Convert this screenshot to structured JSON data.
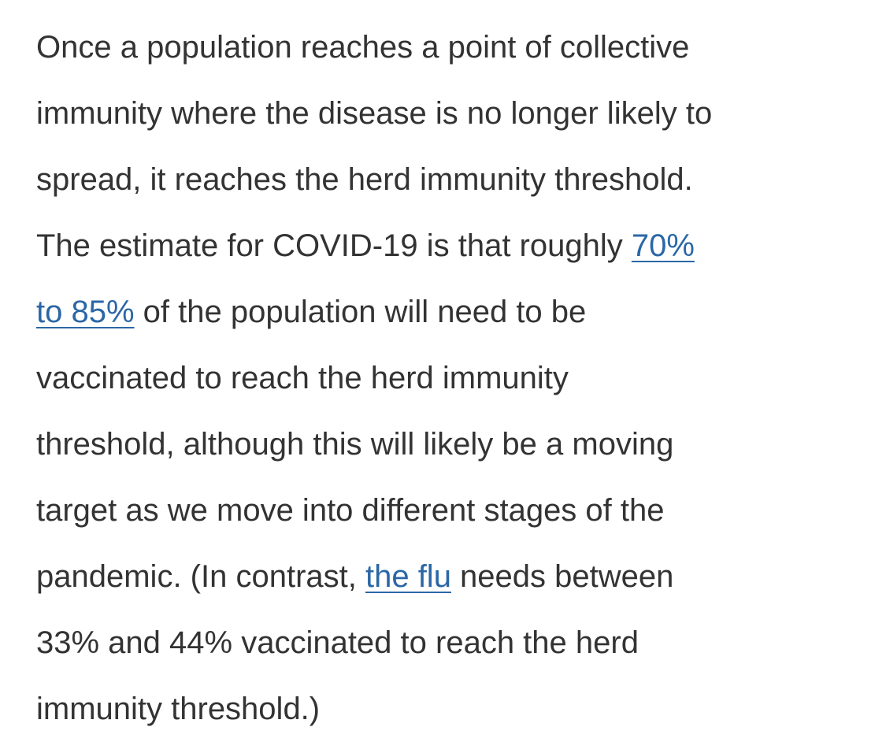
{
  "article": {
    "lines": [
      {
        "text": "Once a population reaches a point of collective"
      },
      {
        "text": "immunity where the disease is no longer likely to"
      },
      {
        "text": "spread, it reaches the herd immunity threshold."
      },
      {
        "before": "The estimate for COVID-19 is that roughly ",
        "link": "70%"
      },
      {
        "link": "to 85%",
        "after": " of the population will need to be"
      },
      {
        "text": "vaccinated to reach the herd immunity"
      },
      {
        "text": "threshold, although this will likely be a moving"
      },
      {
        "text": "target as we move into different stages of the"
      },
      {
        "before": "pandemic. (In contrast, ",
        "link": "the flu",
        "after": " needs between"
      },
      {
        "text": "33% and 44% vaccinated to reach the herd"
      },
      {
        "text": "immunity threshold.)"
      }
    ]
  },
  "colors": {
    "text": "#333333",
    "link": "#2b67a6",
    "background": "#ffffff"
  }
}
